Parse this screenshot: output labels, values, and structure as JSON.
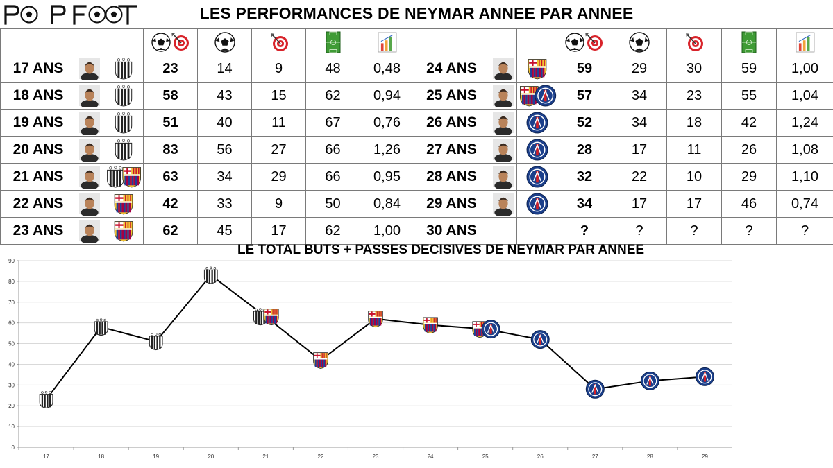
{
  "brand": {
    "logo_text": "POPFOOT",
    "logo_icon": "soccer-ball-icon"
  },
  "header": {
    "title": "LES PERFORMANCES DE NEYMAR ANNEE PAR ANNEE"
  },
  "colors": {
    "santos": "#ffffff",
    "barca_blue": "#1f3f98",
    "barca_red": "#a50044",
    "psg_blue": "#1b3f8b",
    "psg_red": "#d32027",
    "line": "#000000",
    "grid": "#d9d9d9"
  },
  "table": {
    "column_icons": [
      "goals-plus-assists-icon",
      "goals-ball-icon",
      "assists-target-icon",
      "matches-pitch-icon",
      "ratio-bar-chart-icon"
    ],
    "rows_left": [
      {
        "age": "17 ANS",
        "clubs": [
          "santos"
        ],
        "total": "23",
        "goals": "14",
        "assists": "9",
        "matches": "48",
        "ratio": "0,48"
      },
      {
        "age": "18 ANS",
        "clubs": [
          "santos"
        ],
        "total": "58",
        "goals": "43",
        "assists": "15",
        "matches": "62",
        "ratio": "0,94"
      },
      {
        "age": "19 ANS",
        "clubs": [
          "santos"
        ],
        "total": "51",
        "goals": "40",
        "assists": "11",
        "matches": "67",
        "ratio": "0,76"
      },
      {
        "age": "20 ANS",
        "clubs": [
          "santos"
        ],
        "total": "83",
        "goals": "56",
        "assists": "27",
        "matches": "66",
        "ratio": "1,26"
      },
      {
        "age": "21 ANS",
        "clubs": [
          "santos",
          "barca"
        ],
        "total": "63",
        "goals": "34",
        "assists": "29",
        "matches": "66",
        "ratio": "0,95"
      },
      {
        "age": "22 ANS",
        "clubs": [
          "barca"
        ],
        "total": "42",
        "goals": "33",
        "assists": "9",
        "matches": "50",
        "ratio": "0,84"
      },
      {
        "age": "23 ANS",
        "clubs": [
          "barca"
        ],
        "total": "62",
        "goals": "45",
        "assists": "17",
        "matches": "62",
        "ratio": "1,00"
      }
    ],
    "rows_right": [
      {
        "age": "24 ANS",
        "clubs": [
          "barca"
        ],
        "total": "59",
        "goals": "29",
        "assists": "30",
        "matches": "59",
        "ratio": "1,00"
      },
      {
        "age": "25 ANS",
        "clubs": [
          "barca",
          "psg"
        ],
        "total": "57",
        "goals": "34",
        "assists": "23",
        "matches": "55",
        "ratio": "1,04"
      },
      {
        "age": "26 ANS",
        "clubs": [
          "psg"
        ],
        "total": "52",
        "goals": "34",
        "assists": "18",
        "matches": "42",
        "ratio": "1,24"
      },
      {
        "age": "27 ANS",
        "clubs": [
          "psg"
        ],
        "total": "28",
        "goals": "17",
        "assists": "11",
        "matches": "26",
        "ratio": "1,08"
      },
      {
        "age": "28 ANS",
        "clubs": [
          "psg"
        ],
        "total": "32",
        "goals": "22",
        "assists": "10",
        "matches": "29",
        "ratio": "1,10"
      },
      {
        "age": "29 ANS",
        "clubs": [
          "psg"
        ],
        "total": "34",
        "goals": "17",
        "assists": "17",
        "matches": "46",
        "ratio": "0,74"
      },
      {
        "age": "30 ANS",
        "clubs": [],
        "total": "?",
        "goals": "?",
        "assists": "?",
        "matches": "?",
        "ratio": "?"
      }
    ]
  },
  "chart_data": {
    "type": "line",
    "title": "LE TOTAL BUTS + PASSES DECISIVES DE NEYMAR PAR ANNEE",
    "xlabel": "",
    "ylabel": "",
    "categories": [
      "17",
      "18",
      "19",
      "20",
      "21",
      "22",
      "23",
      "24",
      "25",
      "26",
      "27",
      "28",
      "29"
    ],
    "values": [
      23,
      58,
      51,
      83,
      63,
      42,
      62,
      59,
      57,
      52,
      28,
      32,
      34
    ],
    "point_clubs": [
      [
        "santos"
      ],
      [
        "santos"
      ],
      [
        "santos"
      ],
      [
        "santos"
      ],
      [
        "santos",
        "barca"
      ],
      [
        "barca"
      ],
      [
        "barca"
      ],
      [
        "barca"
      ],
      [
        "barca",
        "psg"
      ],
      [
        "psg"
      ],
      [
        "psg"
      ],
      [
        "psg"
      ],
      [
        "psg"
      ]
    ],
    "ylim": [
      0,
      90
    ],
    "yticks": [
      0,
      10,
      20,
      30,
      40,
      50,
      60,
      70,
      80,
      90
    ],
    "grid": true,
    "legend": "none"
  }
}
